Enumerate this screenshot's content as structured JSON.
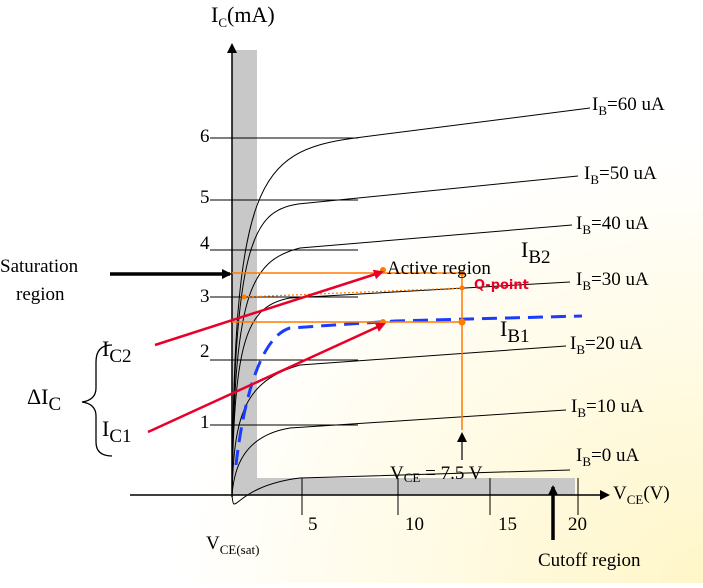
{
  "colors": {
    "curve": "#000000",
    "region_fill": "#c8c8c8",
    "load_line": "#ff7a00",
    "pointer": "#e8002a",
    "ib1_curve": "#1a3cff",
    "background_glow": "#fffbe0"
  },
  "axes": {
    "y_label_main": "I",
    "y_label_sub": "C",
    "y_label_unit": "(mA)",
    "x_label_main": "V",
    "x_label_sub": "CE",
    "x_label_unit": "(V)",
    "y_ticks": [
      "1",
      "2",
      "3",
      "4",
      "5",
      "6"
    ],
    "x_ticks": [
      "5",
      "10",
      "15",
      "20"
    ],
    "vce_sat_main": "V",
    "vce_sat_sub": "CE(sat)"
  },
  "curves": [
    {
      "main": "I",
      "sub": "B",
      "value": "=60 uA"
    },
    {
      "main": "I",
      "sub": "B",
      "value": "=50 uA"
    },
    {
      "main": "I",
      "sub": "B",
      "value": "=40 uA"
    },
    {
      "main": "I",
      "sub": "B",
      "value": "=30 uA"
    },
    {
      "main": "I",
      "sub": "B",
      "value": "=20 uA"
    },
    {
      "main": "I",
      "sub": "B",
      "value": "=10 uA"
    },
    {
      "main": "I",
      "sub": "B",
      "value": "=0 uA"
    }
  ],
  "annotations": {
    "saturation_line1": "Saturation",
    "saturation_line2": "region",
    "active_region": "Active region",
    "q_point": "Q-point",
    "ib2_main": "I",
    "ib2_sub": "B2",
    "ib1_main": "I",
    "ib1_sub": "B1",
    "ic2_main": "I",
    "ic2_sub": "C2",
    "ic1_main": "I",
    "ic1_sub": "C1",
    "delta_ic_main": "ΔI",
    "delta_ic_sub": "C",
    "vce_main": "V",
    "vce_sub": "CE",
    "vce_value": " = 7.5 V",
    "cutoff": "Cutoff region"
  }
}
